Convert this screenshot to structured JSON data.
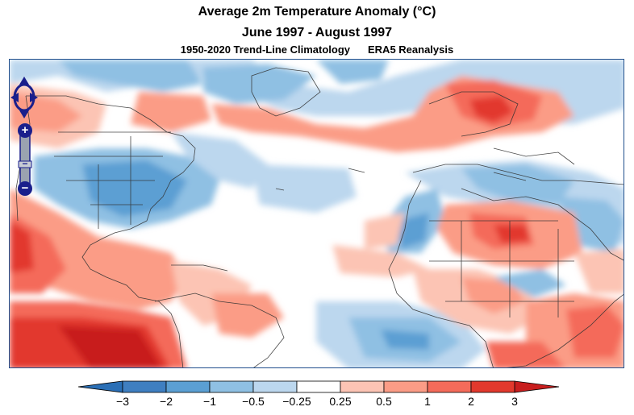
{
  "header": {
    "title": "Average 2m Temperature Anomaly (°C)",
    "period": "June 1997 - August 1997",
    "climatology": "1950-2020 Trend-Line Climatology",
    "source": "ERA5 Reanalysis"
  },
  "controls": {
    "zoom_in_label": "+",
    "zoom_out_label": "−",
    "zoom_min_label": "−"
  },
  "colorbar": {
    "tick_labels": [
      "−3",
      "−2",
      "−1",
      "−0.5",
      "−0.25",
      "0.25",
      "0.5",
      "1",
      "2",
      "3"
    ],
    "colors": [
      "#3f7fc1",
      "#5b9fd3",
      "#8fc0e3",
      "#bcd7ee",
      "#ffffff",
      "#fcc4b4",
      "#fb9c86",
      "#f46b5a",
      "#e2392d"
    ],
    "end_low_color": "#2a6fb6",
    "end_high_color": "#c81e1e"
  },
  "colors": {
    "frame": "#1f4e8c",
    "nav_control": "#1a1f8c",
    "land_border": "#333333"
  }
}
